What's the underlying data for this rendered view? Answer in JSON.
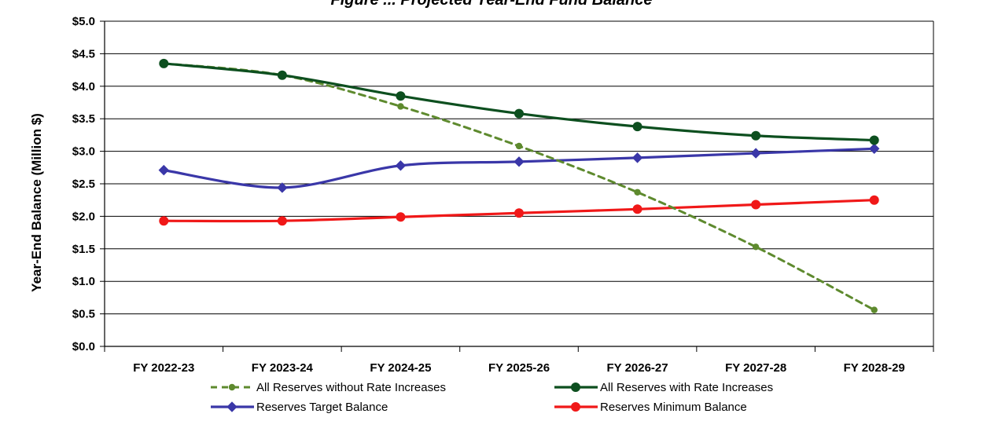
{
  "chart_data": {
    "type": "line",
    "title": "Figure ... Projected Year-End Fund Balance",
    "xlabel": "",
    "ylabel": "Year-End Balance (Million $)",
    "categories": [
      "FY 2022-23",
      "FY 2023-24",
      "FY 2024-25",
      "FY 2025-26",
      "FY 2026-27",
      "FY 2027-28",
      "FY 2028-29"
    ],
    "ylim": [
      0,
      5.0
    ],
    "yticks": [
      0,
      0.5,
      1.0,
      1.5,
      2.0,
      2.5,
      3.0,
      3.5,
      4.0,
      4.5,
      5.0
    ],
    "ytick_labels": [
      "$0.0",
      "$0.5",
      "$1.0",
      "$1.5",
      "$2.0",
      "$2.5",
      "$3.0",
      "$3.5",
      "$4.0",
      "$4.5",
      "$5.0"
    ],
    "grid": true,
    "legend_position": "bottom",
    "series": [
      {
        "name": "All Reserves without Rate Increases",
        "values": [
          4.35,
          4.17,
          3.69,
          3.08,
          2.37,
          1.53,
          0.56
        ],
        "color": "#5e8a2e",
        "line_style": "dashed",
        "marker": "circle-small"
      },
      {
        "name": "All Reserves with Rate Increases",
        "values": [
          4.35,
          4.17,
          3.85,
          3.58,
          3.38,
          3.24,
          3.17
        ],
        "color": "#0d4f1f",
        "line_style": "solid",
        "marker": "circle"
      },
      {
        "name": "Reserves Target Balance",
        "values": [
          2.71,
          2.44,
          2.78,
          2.84,
          2.9,
          2.97,
          3.04
        ],
        "color": "#3a37a8",
        "line_style": "solid",
        "marker": "diamond"
      },
      {
        "name": "Reserves Minimum Balance",
        "values": [
          1.93,
          1.93,
          1.99,
          2.05,
          2.11,
          2.18,
          2.25
        ],
        "color": "#f01818",
        "line_style": "solid",
        "marker": "circle"
      }
    ]
  }
}
